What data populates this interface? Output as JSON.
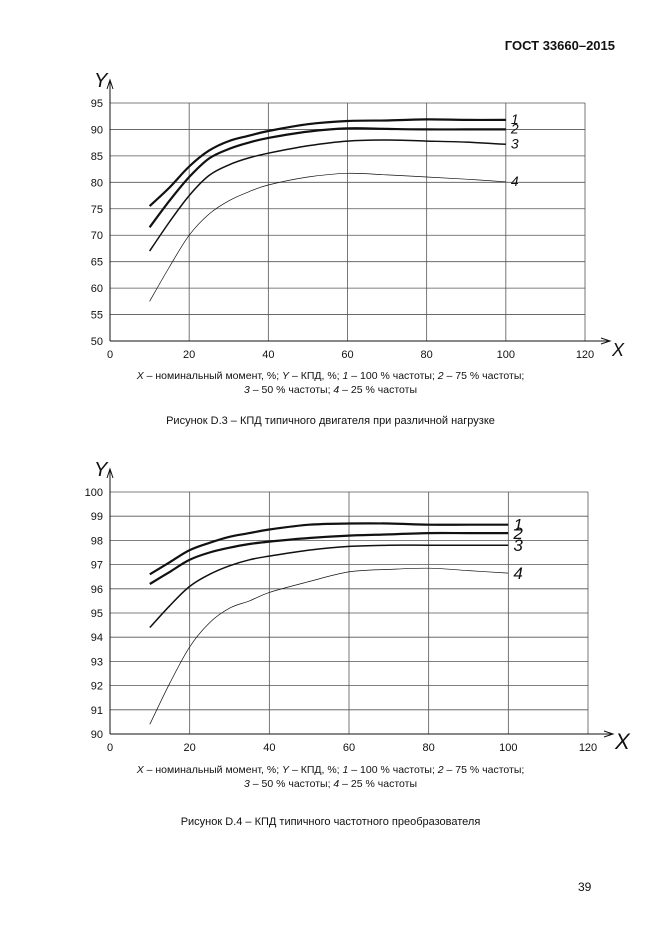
{
  "header": {
    "standard": "ГОСТ 33660–2015"
  },
  "page_number": "39",
  "chart_data": [
    {
      "type": "line",
      "x_axis_letter": "X",
      "y_axis_letter": "Y",
      "xlim": [
        0,
        120
      ],
      "ylim": [
        50,
        95
      ],
      "x_ticks": [
        0,
        20,
        40,
        60,
        80,
        100,
        120
      ],
      "y_ticks": [
        50,
        55,
        60,
        65,
        70,
        75,
        80,
        85,
        90,
        95
      ],
      "grid": true,
      "series": [
        {
          "name": "1",
          "style": "bold",
          "x": [
            10,
            15,
            20,
            25,
            30,
            35,
            40,
            50,
            60,
            70,
            80,
            90,
            100
          ],
          "y": [
            75.5,
            79,
            83,
            86,
            87.8,
            88.8,
            89.7,
            91,
            91.6,
            91.7,
            91.9,
            91.8,
            91.8
          ]
        },
        {
          "name": "2",
          "style": "bold",
          "x": [
            10,
            15,
            20,
            25,
            30,
            35,
            40,
            50,
            60,
            70,
            80,
            90,
            100
          ],
          "y": [
            71.5,
            76.5,
            81,
            84.5,
            86.3,
            87.5,
            88.4,
            89.6,
            90.2,
            90.1,
            90.0,
            90.0,
            90.0
          ]
        },
        {
          "name": "3",
          "style": "medium",
          "x": [
            10,
            15,
            20,
            25,
            30,
            35,
            40,
            50,
            60,
            70,
            80,
            90,
            100
          ],
          "y": [
            67,
            72.5,
            77.5,
            81.3,
            83.3,
            84.6,
            85.5,
            86.9,
            87.8,
            88,
            87.8,
            87.6,
            87.2
          ]
        },
        {
          "name": "4",
          "style": "thin",
          "x": [
            10,
            15,
            20,
            25,
            30,
            35,
            40,
            50,
            60,
            70,
            80,
            90,
            100
          ],
          "y": [
            57.5,
            64,
            70,
            74,
            76.5,
            78.2,
            79.5,
            81,
            81.7,
            81.4,
            81,
            80.6,
            80.1
          ]
        }
      ]
    },
    {
      "type": "line",
      "x_axis_letter": "X",
      "y_axis_letter": "Y",
      "xlim": [
        0,
        120
      ],
      "ylim": [
        90,
        100
      ],
      "x_ticks": [
        0,
        20,
        40,
        60,
        80,
        100,
        120
      ],
      "y_ticks": [
        90,
        91,
        92,
        93,
        94,
        95,
        96,
        97,
        98,
        99,
        100
      ],
      "grid": true,
      "series": [
        {
          "name": "1",
          "style": "bold",
          "x": [
            10,
            15,
            20,
            25,
            30,
            35,
            40,
            50,
            60,
            70,
            80,
            90,
            100
          ],
          "y": [
            96.6,
            97.1,
            97.6,
            97.9,
            98.15,
            98.3,
            98.45,
            98.65,
            98.7,
            98.7,
            98.65,
            98.65,
            98.65
          ]
        },
        {
          "name": "2",
          "style": "bold",
          "x": [
            10,
            15,
            20,
            25,
            30,
            35,
            40,
            50,
            60,
            70,
            80,
            90,
            100
          ],
          "y": [
            96.2,
            96.7,
            97.2,
            97.5,
            97.7,
            97.85,
            97.95,
            98.1,
            98.2,
            98.25,
            98.3,
            98.3,
            98.3
          ]
        },
        {
          "name": "3",
          "style": "medium",
          "x": [
            10,
            15,
            20,
            25,
            30,
            35,
            40,
            50,
            60,
            70,
            80,
            90,
            100
          ],
          "y": [
            94.4,
            95.3,
            96.1,
            96.6,
            96.95,
            97.2,
            97.35,
            97.6,
            97.75,
            97.8,
            97.8,
            97.8,
            97.8
          ]
        },
        {
          "name": "4",
          "style": "thin",
          "x": [
            10,
            15,
            20,
            25,
            30,
            35,
            40,
            50,
            60,
            70,
            80,
            90,
            100
          ],
          "y": [
            90.4,
            92.1,
            93.6,
            94.6,
            95.2,
            95.5,
            95.85,
            96.3,
            96.7,
            96.8,
            96.85,
            96.75,
            96.65
          ]
        }
      ]
    }
  ],
  "legends": [
    {
      "line1": [
        {
          "t": "X",
          "i": true
        },
        {
          "t": " – номинальный момент, %; ",
          "i": false
        },
        {
          "t": "Y",
          "i": true
        },
        {
          "t": " – КПД, %; ",
          "i": false
        },
        {
          "t": "1",
          "i": true
        },
        {
          "t": " – 100 % частоты; ",
          "i": false
        },
        {
          "t": "2",
          "i": true
        },
        {
          "t": " – 75 % частоты;",
          "i": false
        }
      ],
      "line2": [
        {
          "t": "3",
          "i": true
        },
        {
          "t": " – 50 % частоты; ",
          "i": false
        },
        {
          "t": "4",
          "i": true
        },
        {
          "t": " – 25 % частоты",
          "i": false
        }
      ]
    },
    {
      "line1": [
        {
          "t": "X",
          "i": true
        },
        {
          "t": " – номинальный момент, %; ",
          "i": false
        },
        {
          "t": "Y",
          "i": true
        },
        {
          "t": " – КПД, %; ",
          "i": false
        },
        {
          "t": "1",
          "i": true
        },
        {
          "t": " – 100 % частоты; ",
          "i": false
        },
        {
          "t": "2",
          "i": true
        },
        {
          "t": " – 75 % частоты;",
          "i": false
        }
      ],
      "line2": [
        {
          "t": "3",
          "i": true
        },
        {
          "t": " – 50 % частоты; ",
          "i": false
        },
        {
          "t": "4",
          "i": true
        },
        {
          "t": " – 25 % частоты",
          "i": false
        }
      ]
    }
  ],
  "captions": [
    "Рисунок D.3 – КПД типичного двигателя при различной нагрузке",
    "Рисунок D.4 – КПД типичного частотного преобразователя"
  ]
}
